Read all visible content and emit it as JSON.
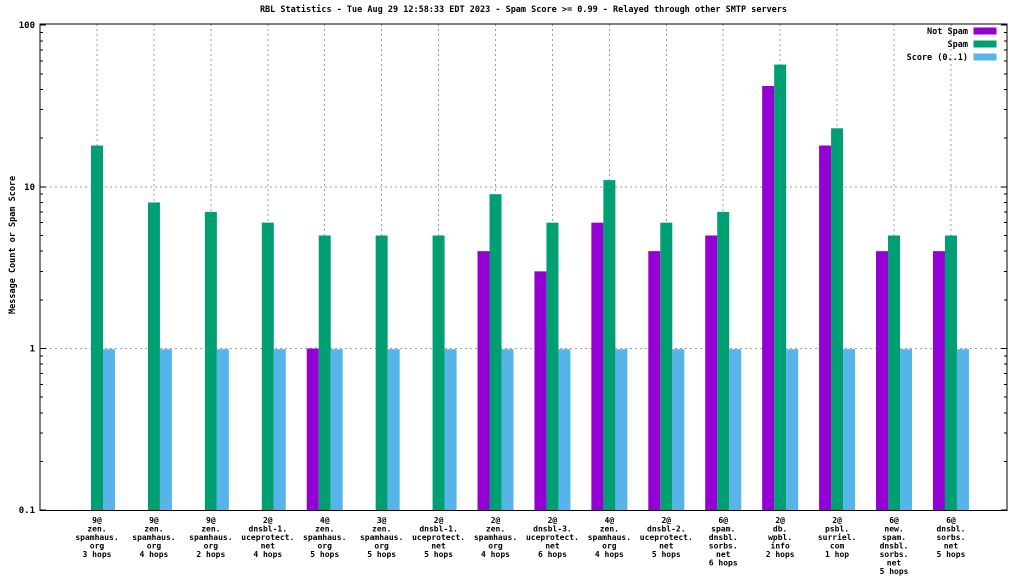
{
  "chart_data": {
    "type": "bar",
    "title": "RBL Statistics - Tue Aug 29 12:58:33 EDT 2023 - Spam Score >= 0.99 - Relayed through other SMTP servers",
    "ylabel": "Message Count or Spam Score",
    "xlabel": "",
    "y_scale": "log10",
    "ylim": [
      0.1,
      100
    ],
    "yticks": [
      0.1,
      1,
      10,
      100
    ],
    "ytick_labels": [
      "0.1",
      "1",
      "10",
      "100"
    ],
    "grid": true,
    "legend_position": "top-right-inside",
    "colors": {
      "not_spam": "#9400d3",
      "spam": "#009e73",
      "score": "#56b4e9",
      "grid": "#9c9c9c",
      "border": "#000000",
      "background": "#ffffff"
    },
    "categories": [
      [
        "9@",
        "zen.",
        "spamhaus.",
        "org",
        "3 hops"
      ],
      [
        "9@",
        "zen.",
        "spamhaus.",
        "org",
        "4 hops"
      ],
      [
        "9@",
        "zen.",
        "spamhaus.",
        "org",
        "2 hops"
      ],
      [
        "2@",
        "dnsbl-1.",
        "uceprotect.",
        "net",
        "4 hops"
      ],
      [
        "4@",
        "zen.",
        "spamhaus.",
        "org",
        "5 hops"
      ],
      [
        "3@",
        "zen.",
        "spamhaus.",
        "org",
        "5 hops"
      ],
      [
        "2@",
        "dnsbl-1.",
        "uceprotect.",
        "net",
        "5 hops"
      ],
      [
        "2@",
        "zen.",
        "spamhaus.",
        "org",
        "4 hops"
      ],
      [
        "2@",
        "dnsbl-3.",
        "uceprotect.",
        "net",
        "6 hops"
      ],
      [
        "4@",
        "zen.",
        "spamhaus.",
        "org",
        "4 hops"
      ],
      [
        "2@",
        "dnsbl-2.",
        "uceprotect.",
        "net",
        "5 hops"
      ],
      [
        "6@",
        "spam.",
        "dnsbl.",
        "sorbs.",
        "net",
        "6 hops"
      ],
      [
        "2@",
        "db.",
        "wpbl.",
        "info",
        "2 hops"
      ],
      [
        "2@",
        "psbl.",
        "surriel.",
        "com",
        "1 hop"
      ],
      [
        "6@",
        "new.",
        "spam.",
        "dnsbl.",
        "sorbs.",
        "net",
        "5 hops"
      ],
      [
        "6@",
        "dnsbl.",
        "sorbs.",
        "net",
        "5 hops"
      ]
    ],
    "series": [
      {
        "name": "Not Spam",
        "slug": "not-spam",
        "color": "#9400d3",
        "values": [
          0,
          0,
          0,
          0,
          1,
          0,
          0,
          4,
          3,
          6,
          4,
          5,
          42,
          18,
          4,
          4
        ]
      },
      {
        "name": "Spam",
        "slug": "spam",
        "color": "#009e73",
        "values": [
          18,
          8,
          7,
          6,
          5,
          5,
          5,
          9,
          6,
          11,
          6,
          7,
          57,
          23,
          5,
          5
        ]
      },
      {
        "name": "Score (0..1)",
        "slug": "score",
        "color": "#56b4e9",
        "values": [
          0.99,
          0.99,
          0.99,
          0.99,
          0.99,
          0.99,
          0.99,
          0.99,
          0.99,
          0.99,
          0.99,
          0.99,
          0.99,
          0.99,
          0.99,
          0.99
        ]
      }
    ]
  }
}
